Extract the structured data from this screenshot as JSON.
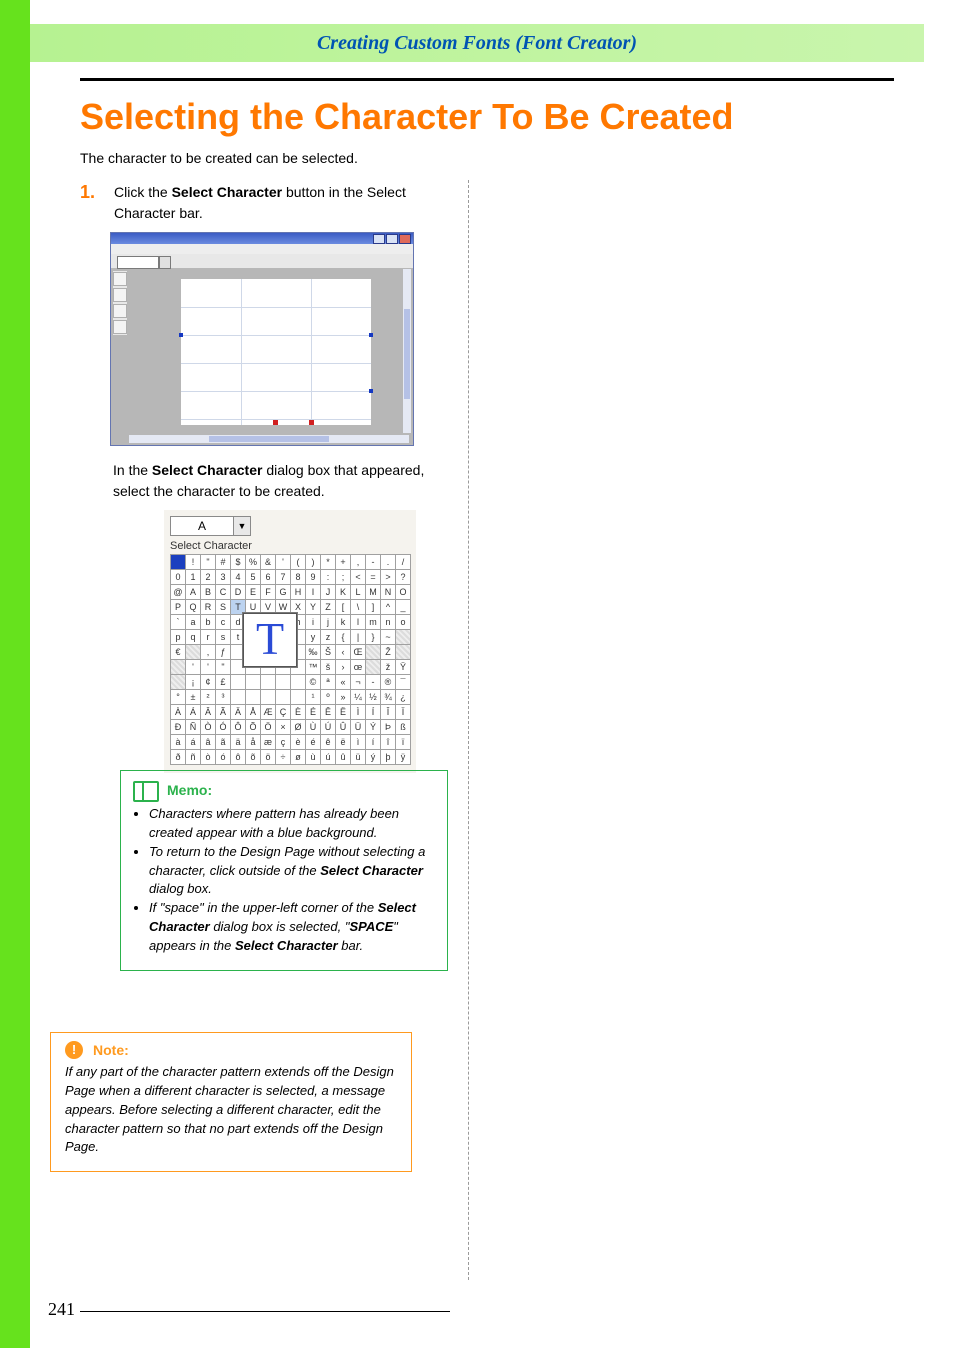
{
  "colors": {
    "left_stripe": "#66e21d",
    "header_band": "#b6f291",
    "header_title": "#0054b3",
    "main_title": "#ff7800",
    "step_num": "#ff7800",
    "memo_border": "#2bb24c",
    "note_border": "#ff9a1f",
    "grid_blue": "#bcd3f0",
    "grid_sel_bg": "#1b3fbf",
    "text": "#000000"
  },
  "header": {
    "title": "Creating Custom Fonts (Font Creator)"
  },
  "title": "Selecting the Character To Be Created",
  "intro": "The character to be created can be selected.",
  "step": {
    "num": "1.",
    "pre": "Click the ",
    "bold": "Select Character",
    "post": " button in the Select Character bar."
  },
  "after_fig": {
    "pre": "In the ",
    "bold": "Select Character",
    "post": " dialog box that appeared, select the character to be created."
  },
  "fig2": {
    "dialog_label": "Select Character",
    "current_char_field": "A",
    "dropdown_glyph": "▼",
    "preview_char": "T",
    "grid_cols": 16,
    "rows": [
      [
        {
          "t": " ",
          "k": "sel"
        },
        {
          "t": "!"
        },
        {
          "t": "\""
        },
        {
          "t": "#"
        },
        {
          "t": "$"
        },
        {
          "t": "%"
        },
        {
          "t": "&"
        },
        {
          "t": "'"
        },
        {
          "t": "("
        },
        {
          "t": ")"
        },
        {
          "t": "*"
        },
        {
          "t": "+"
        },
        {
          "t": ","
        },
        {
          "t": "-"
        },
        {
          "t": "."
        },
        {
          "t": "/"
        }
      ],
      [
        {
          "t": "0"
        },
        {
          "t": "1"
        },
        {
          "t": "2"
        },
        {
          "t": "3"
        },
        {
          "t": "4"
        },
        {
          "t": "5"
        },
        {
          "t": "6"
        },
        {
          "t": "7"
        },
        {
          "t": "8"
        },
        {
          "t": "9"
        },
        {
          "t": ":"
        },
        {
          "t": ";"
        },
        {
          "t": "<"
        },
        {
          "t": "="
        },
        {
          "t": ">"
        },
        {
          "t": "?"
        }
      ],
      [
        {
          "t": "@"
        },
        {
          "t": "A"
        },
        {
          "t": "B"
        },
        {
          "t": "C"
        },
        {
          "t": "D"
        },
        {
          "t": "E"
        },
        {
          "t": "F"
        },
        {
          "t": "G"
        },
        {
          "t": "H"
        },
        {
          "t": "I"
        },
        {
          "t": "J"
        },
        {
          "t": "K"
        },
        {
          "t": "L"
        },
        {
          "t": "M"
        },
        {
          "t": "N"
        },
        {
          "t": "O"
        }
      ],
      [
        {
          "t": "P"
        },
        {
          "t": "Q"
        },
        {
          "t": "R"
        },
        {
          "t": "S"
        },
        {
          "t": "T",
          "k": "blue"
        },
        {
          "t": "U"
        },
        {
          "t": "V"
        },
        {
          "t": "W"
        },
        {
          "t": "X"
        },
        {
          "t": "Y"
        },
        {
          "t": "Z"
        },
        {
          "t": "["
        },
        {
          "t": "\\"
        },
        {
          "t": "]"
        },
        {
          "t": "^"
        },
        {
          "t": "_"
        }
      ],
      [
        {
          "t": "`"
        },
        {
          "t": "a"
        },
        {
          "t": "b"
        },
        {
          "t": "c"
        },
        {
          "t": "d"
        },
        {
          "t": "e"
        },
        {
          "t": "f"
        },
        {
          "t": "g"
        },
        {
          "t": "h"
        },
        {
          "t": "i"
        },
        {
          "t": "j"
        },
        {
          "t": "k"
        },
        {
          "t": "l"
        },
        {
          "t": "m"
        },
        {
          "t": "n"
        },
        {
          "t": "o"
        }
      ],
      [
        {
          "t": "p"
        },
        {
          "t": "q"
        },
        {
          "t": "r"
        },
        {
          "t": "s"
        },
        {
          "t": "t"
        },
        {
          "t": ""
        },
        {
          "t": ""
        },
        {
          "t": ""
        },
        {
          "t": ""
        },
        {
          "t": "y"
        },
        {
          "t": "z"
        },
        {
          "t": "{"
        },
        {
          "t": "|"
        },
        {
          "t": "}"
        },
        {
          "t": "~"
        },
        {
          "t": "",
          "k": "dis"
        }
      ],
      [
        {
          "t": "€"
        },
        {
          "t": "",
          "k": "dis"
        },
        {
          "t": ","
        },
        {
          "t": "ƒ"
        },
        {
          "t": ""
        },
        {
          "t": ""
        },
        {
          "t": ""
        },
        {
          "t": ""
        },
        {
          "t": ""
        },
        {
          "t": "‰"
        },
        {
          "t": "Š"
        },
        {
          "t": "‹"
        },
        {
          "t": "Œ"
        },
        {
          "t": "",
          "k": "dis"
        },
        {
          "t": "Ž"
        },
        {
          "t": "",
          "k": "dis"
        }
      ],
      [
        {
          "t": "",
          "k": "dis"
        },
        {
          "t": "'"
        },
        {
          "t": "'"
        },
        {
          "t": "\""
        },
        {
          "t": ""
        },
        {
          "t": ""
        },
        {
          "t": ""
        },
        {
          "t": ""
        },
        {
          "t": ""
        },
        {
          "t": "™"
        },
        {
          "t": "š"
        },
        {
          "t": "›"
        },
        {
          "t": "œ"
        },
        {
          "t": "",
          "k": "dis"
        },
        {
          "t": "ž"
        },
        {
          "t": "Ÿ"
        }
      ],
      [
        {
          "t": "",
          "k": "dis"
        },
        {
          "t": "¡"
        },
        {
          "t": "¢"
        },
        {
          "t": "£"
        },
        {
          "t": ""
        },
        {
          "t": ""
        },
        {
          "t": ""
        },
        {
          "t": ""
        },
        {
          "t": ""
        },
        {
          "t": "©"
        },
        {
          "t": "ª"
        },
        {
          "t": "«"
        },
        {
          "t": "¬"
        },
        {
          "t": "-"
        },
        {
          "t": "®"
        },
        {
          "t": "¯"
        }
      ],
      [
        {
          "t": "°"
        },
        {
          "t": "±"
        },
        {
          "t": "²"
        },
        {
          "t": "³"
        },
        {
          "t": ""
        },
        {
          "t": ""
        },
        {
          "t": ""
        },
        {
          "t": ""
        },
        {
          "t": ""
        },
        {
          "t": "¹"
        },
        {
          "t": "º"
        },
        {
          "t": "»"
        },
        {
          "t": "¼"
        },
        {
          "t": "½"
        },
        {
          "t": "¾"
        },
        {
          "t": "¿"
        }
      ],
      [
        {
          "t": "À"
        },
        {
          "t": "Á"
        },
        {
          "t": "Â"
        },
        {
          "t": "Ã"
        },
        {
          "t": "Ä"
        },
        {
          "t": "Å"
        },
        {
          "t": "Æ"
        },
        {
          "t": "Ç"
        },
        {
          "t": "È"
        },
        {
          "t": "É"
        },
        {
          "t": "Ê"
        },
        {
          "t": "Ë"
        },
        {
          "t": "Ì"
        },
        {
          "t": "Í"
        },
        {
          "t": "Î"
        },
        {
          "t": "Ï"
        }
      ],
      [
        {
          "t": "Ð"
        },
        {
          "t": "Ñ"
        },
        {
          "t": "Ò"
        },
        {
          "t": "Ó"
        },
        {
          "t": "Ô"
        },
        {
          "t": "Õ"
        },
        {
          "t": "Ö"
        },
        {
          "t": "×"
        },
        {
          "t": "Ø"
        },
        {
          "t": "Ù"
        },
        {
          "t": "Ú"
        },
        {
          "t": "Û"
        },
        {
          "t": "Ü"
        },
        {
          "t": "Ý"
        },
        {
          "t": "Þ"
        },
        {
          "t": "ß"
        }
      ],
      [
        {
          "t": "à"
        },
        {
          "t": "á"
        },
        {
          "t": "â"
        },
        {
          "t": "ã"
        },
        {
          "t": "ä"
        },
        {
          "t": "å"
        },
        {
          "t": "æ"
        },
        {
          "t": "ç"
        },
        {
          "t": "è"
        },
        {
          "t": "é"
        },
        {
          "t": "ê"
        },
        {
          "t": "ë"
        },
        {
          "t": "ì"
        },
        {
          "t": "í"
        },
        {
          "t": "î"
        },
        {
          "t": "ï"
        }
      ],
      [
        {
          "t": "ð"
        },
        {
          "t": "ñ"
        },
        {
          "t": "ò"
        },
        {
          "t": "ó"
        },
        {
          "t": "ô"
        },
        {
          "t": "õ"
        },
        {
          "t": "ö"
        },
        {
          "t": "÷"
        },
        {
          "t": "ø"
        },
        {
          "t": "ù"
        },
        {
          "t": "ú"
        },
        {
          "t": "û"
        },
        {
          "t": "ü"
        },
        {
          "t": "ý"
        },
        {
          "t": "þ"
        },
        {
          "t": "ÿ"
        }
      ]
    ]
  },
  "memo": {
    "label": "Memo:",
    "items": [
      {
        "text": "Characters where pattern has already been created appear with a blue background."
      },
      {
        "pre": "To return to the Design Page without selecting a character, click outside of the ",
        "b1": "Select Character",
        "post": " dialog box."
      },
      {
        "pre": "If \"space\" in the upper-left corner of the ",
        "b1": "Select Character",
        "mid": " dialog box is selected, \"",
        "b2": "SPACE",
        "mid2": "\" appears in the ",
        "b3": "Select Character",
        "post": " bar."
      }
    ]
  },
  "note": {
    "label": "Note:",
    "icon": "!",
    "text": "If any part of the character pattern extends off the Design Page when a different character is selected, a message appears. Before selecting a different character, edit the character pattern so that no part extends off the Design Page."
  },
  "page_number": "241"
}
